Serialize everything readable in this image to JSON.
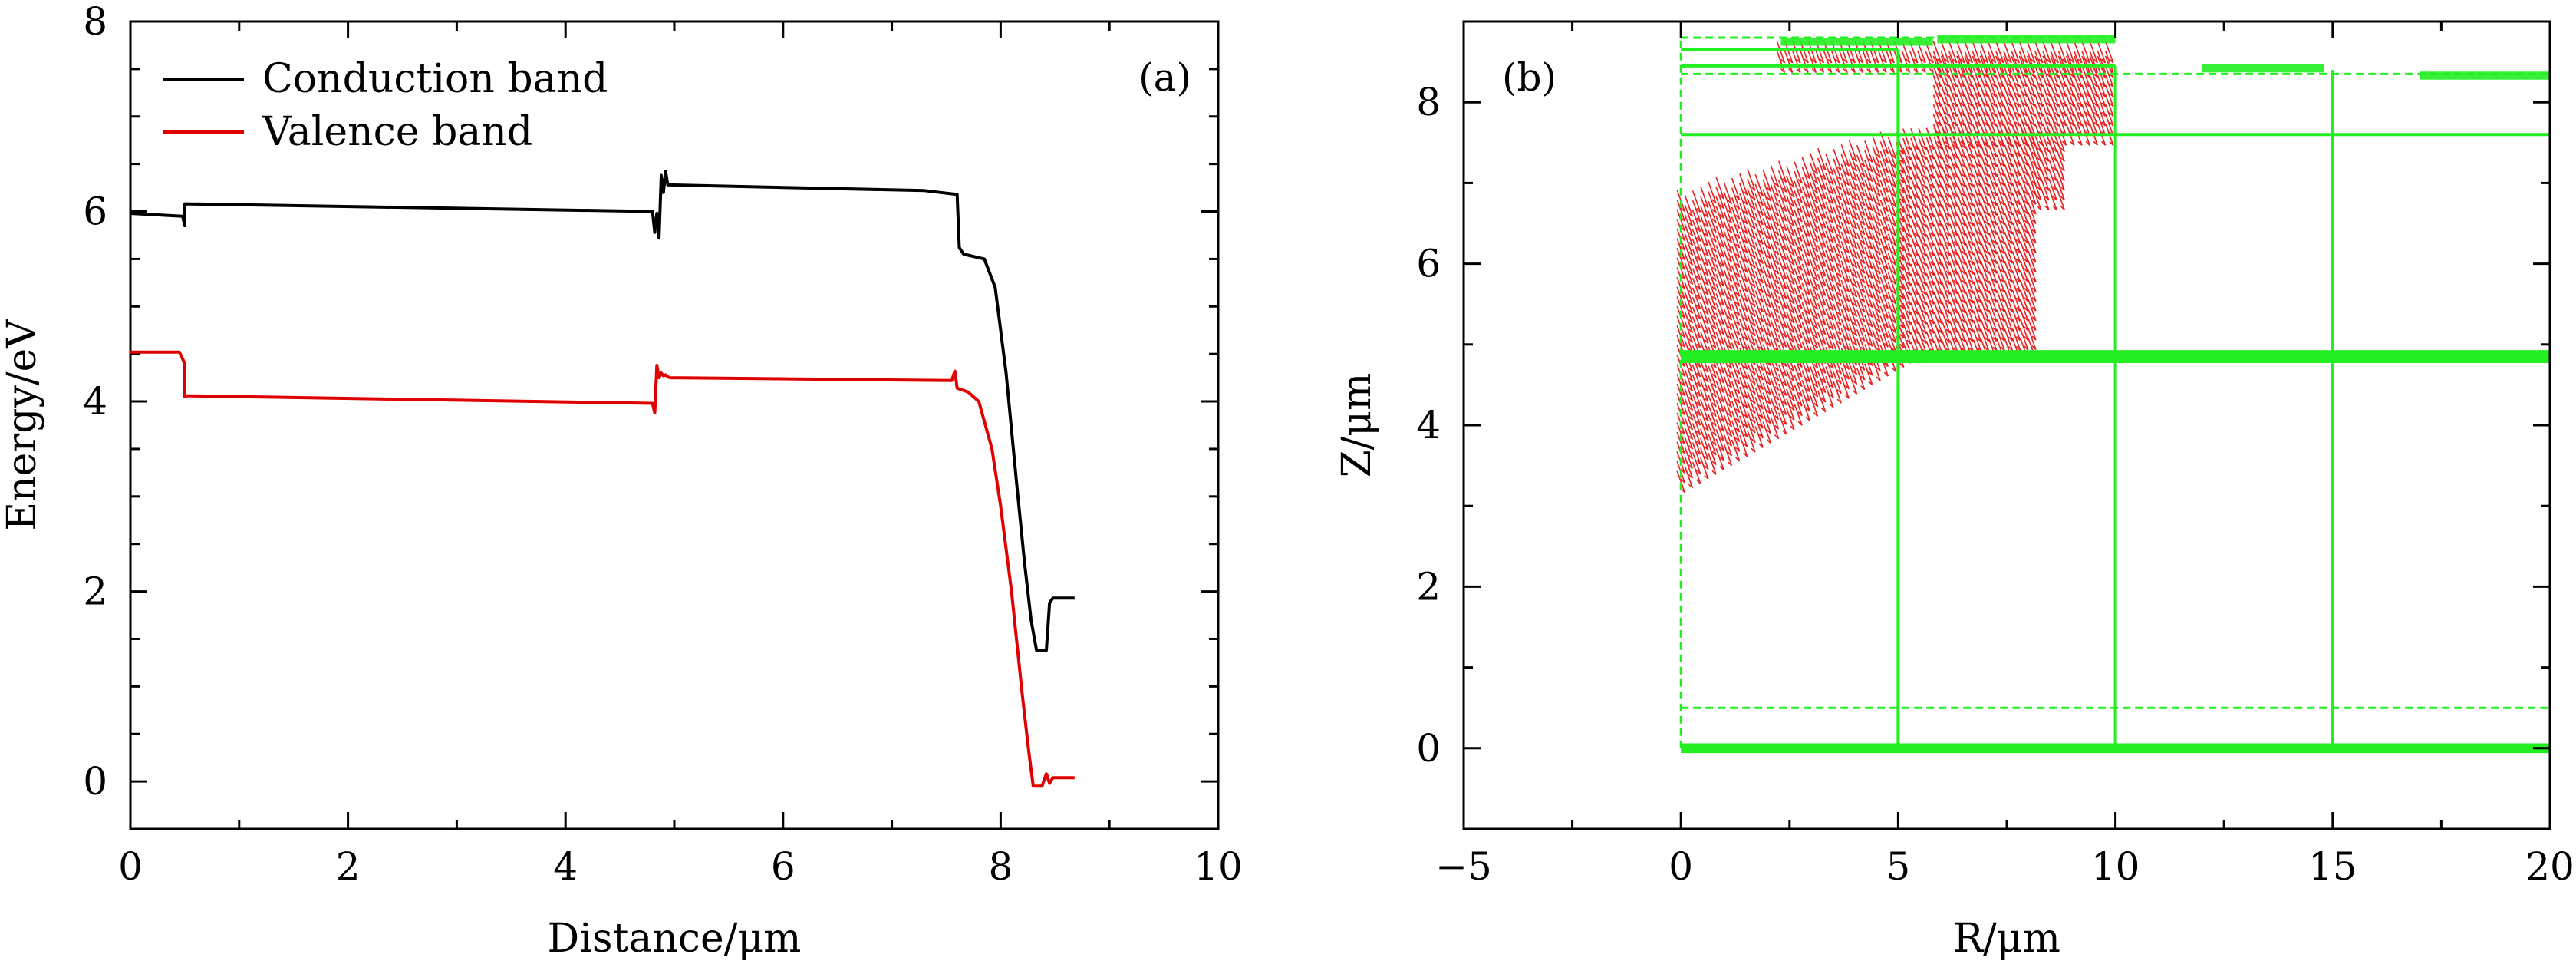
{
  "chart_data": [
    {
      "type": "line",
      "panel_label": "(a)",
      "xlabel": "Distance/μm",
      "ylabel": "Energy/eV",
      "xlim": [
        0,
        10
      ],
      "ylim": [
        -0.5,
        8
      ],
      "xticks": [
        0,
        2,
        4,
        6,
        8,
        10
      ],
      "yticks": [
        0,
        2,
        4,
        6,
        8
      ],
      "xtick_labels": [
        "0",
        "2",
        "4",
        "6",
        "8",
        "10"
      ],
      "ytick_labels": [
        "0",
        "2",
        "4",
        "6",
        "8"
      ],
      "legend_position": "top-left",
      "series": [
        {
          "name": "Conduction band",
          "color": "#000000",
          "x": [
            0,
            0.48,
            0.5,
            0.5,
            0.5,
            4.8,
            4.82,
            4.84,
            4.86,
            4.88,
            4.9,
            4.92,
            4.94,
            4.96,
            7.3,
            7.6,
            7.62,
            7.66,
            7.7,
            7.85,
            7.95,
            8.05,
            8.15,
            8.22,
            8.28,
            8.33,
            8.37,
            8.42,
            8.45,
            8.48,
            8.5,
            8.68
          ],
          "y": [
            5.98,
            5.95,
            5.85,
            6.06,
            6.08,
            6.0,
            5.78,
            5.98,
            5.72,
            6.38,
            6.2,
            6.42,
            6.28,
            6.28,
            6.22,
            6.18,
            5.62,
            5.55,
            5.54,
            5.5,
            5.2,
            4.3,
            3.1,
            2.3,
            1.7,
            1.38,
            1.38,
            1.38,
            1.88,
            1.93,
            1.93,
            1.93
          ]
        },
        {
          "name": "Valence band",
          "color": "#e00000",
          "x": [
            0,
            0.45,
            0.5,
            0.5,
            0.5,
            4.8,
            4.82,
            4.84,
            4.86,
            4.88,
            4.9,
            4.92,
            4.94,
            4.96,
            7.55,
            7.58,
            7.6,
            7.65,
            7.7,
            7.8,
            7.92,
            8.0,
            8.1,
            8.2,
            8.26,
            8.3,
            8.38,
            8.42,
            8.45,
            8.48,
            8.68
          ],
          "y": [
            4.52,
            4.52,
            4.4,
            4.05,
            4.06,
            3.98,
            3.88,
            4.38,
            4.25,
            4.3,
            4.27,
            4.28,
            4.26,
            4.25,
            4.22,
            4.32,
            4.14,
            4.12,
            4.1,
            4.0,
            3.5,
            2.9,
            2.0,
            0.9,
            0.3,
            -0.05,
            -0.05,
            0.08,
            -0.02,
            0.04,
            0.04
          ]
        }
      ]
    },
    {
      "type": "vector-field",
      "panel_label": "(b)",
      "xlabel": "R/μm",
      "ylabel": "Z/μm",
      "xlim": [
        -5,
        20
      ],
      "ylim": [
        -1,
        9
      ],
      "xticks": [
        -5,
        0,
        5,
        10,
        15,
        20
      ],
      "yticks": [
        0,
        2,
        4,
        6,
        8
      ],
      "xtick_labels": [
        "−5",
        "0",
        "5",
        "10",
        "15",
        "20"
      ],
      "ytick_labels": [
        "0",
        "2",
        "4",
        "6",
        "8"
      ],
      "mesh_color": "#22ee22",
      "arrow_color": "#e82020",
      "mesh_solid_h": [
        [
          0,
          20,
          7.6
        ],
        [
          0,
          20,
          4.85
        ],
        [
          0,
          10,
          8.45
        ],
        [
          0,
          5,
          8.65
        ]
      ],
      "mesh_solid_v": [
        [
          5,
          0,
          8.65
        ],
        [
          10,
          0,
          8.45
        ],
        [
          15,
          0,
          8.4
        ]
      ],
      "mesh_dashed_h": [
        [
          0,
          20,
          0.5
        ],
        [
          0,
          10,
          8.8
        ],
        [
          0,
          20,
          8.35
        ]
      ],
      "mesh_dashed_v": [
        [
          0,
          0,
          8.8
        ],
        [
          5,
          0,
          4.8
        ],
        [
          10,
          0,
          4.8
        ],
        [
          15,
          0,
          4.8
        ],
        [
          20,
          0,
          8.3
        ]
      ],
      "mesh_dense_band": [
        0,
        20,
        0.0
      ],
      "arrow_regions": [
        {
          "x0": 0.0,
          "x1": 5.2,
          "ybot0": 3.3,
          "ybot1": 4.9,
          "ytop0": 6.8,
          "ytop1": 7.6
        },
        {
          "x0": 5.2,
          "x1": 8.2,
          "ybot0": 4.9,
          "ybot1": 4.95,
          "ytop0": 7.6,
          "ytop1": 7.6
        },
        {
          "x0": 8.2,
          "x1": 8.8,
          "ybot0": 6.8,
          "ybot1": 6.8,
          "ytop0": 7.6,
          "ytop1": 7.6
        },
        {
          "x0": 5.9,
          "x1": 10.0,
          "ybot0": 7.6,
          "ybot1": 7.6,
          "ytop0": 8.5,
          "ytop1": 8.5
        },
        {
          "x0": 2.3,
          "x1": 10.0,
          "ybot0": 8.5,
          "ybot1": 8.5,
          "ytop0": 8.72,
          "ytop1": 8.72
        }
      ]
    }
  ]
}
